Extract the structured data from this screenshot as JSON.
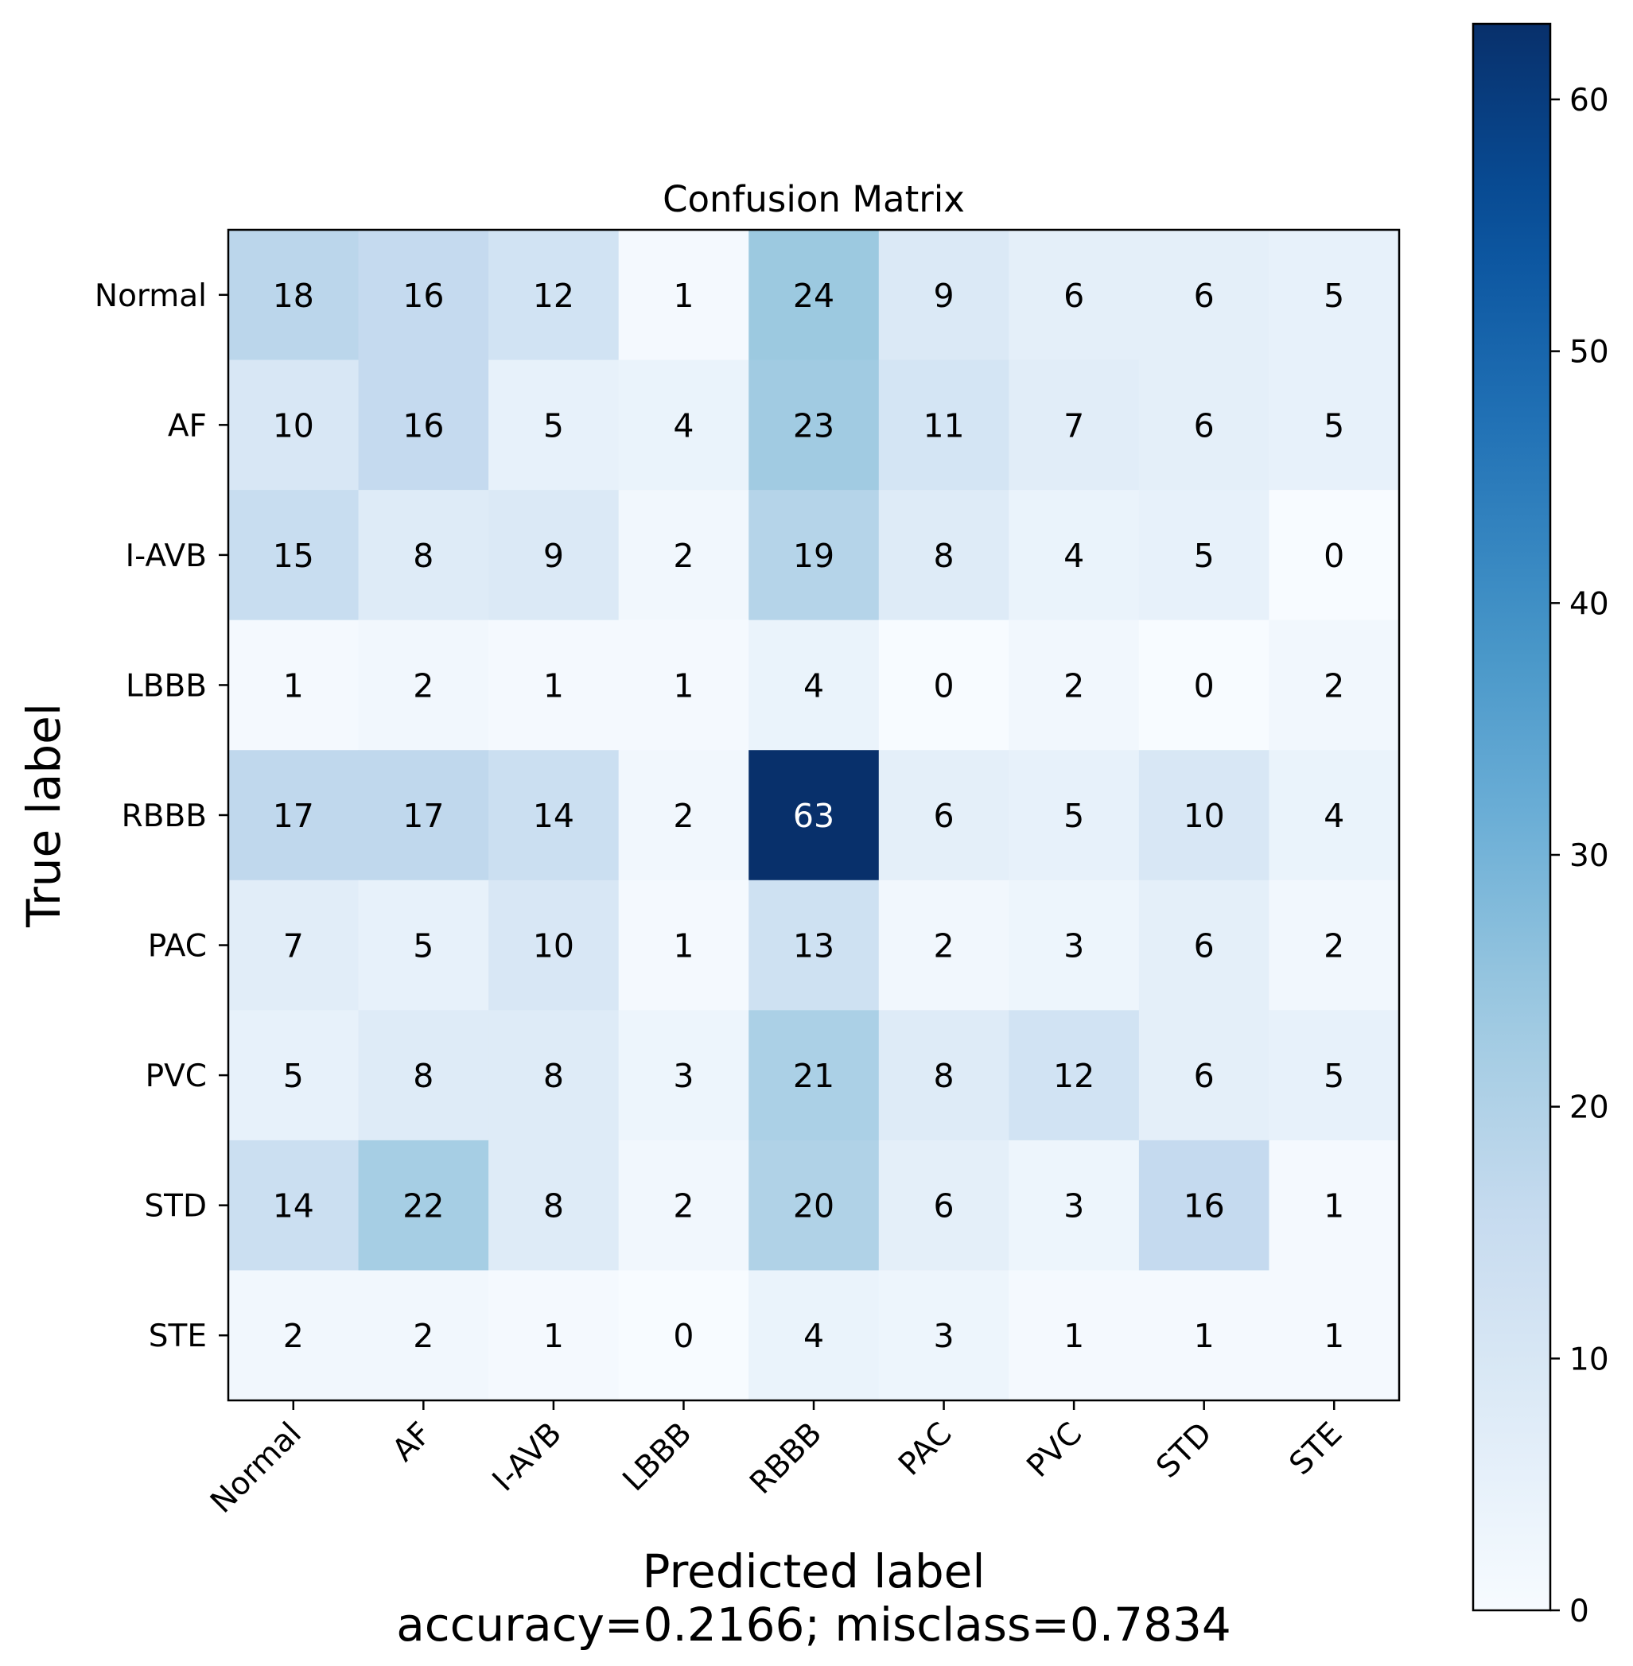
{
  "chart_data": {
    "type": "heatmap",
    "title": "Confusion Matrix",
    "xlabel": "Predicted label",
    "xlabel_sub": "accuracy=0.2166; misclass=0.7834",
    "ylabel": "True label",
    "colormap": "Blues",
    "vmin": 0,
    "vmax": 63,
    "colorbar_ticks": [
      0,
      10,
      20,
      30,
      40,
      50,
      60
    ],
    "x_categories": [
      "Normal",
      "AF",
      "I-AVB",
      "LBBB",
      "RBBB",
      "PAC",
      "PVC",
      "STD",
      "STE"
    ],
    "y_categories": [
      "Normal",
      "AF",
      "I-AVB",
      "LBBB",
      "RBBB",
      "PAC",
      "PVC",
      "STD",
      "STE"
    ],
    "values": [
      [
        18,
        16,
        12,
        1,
        24,
        9,
        6,
        6,
        5
      ],
      [
        10,
        16,
        5,
        4,
        23,
        11,
        7,
        6,
        5
      ],
      [
        15,
        8,
        9,
        2,
        19,
        8,
        4,
        5,
        0
      ],
      [
        1,
        2,
        1,
        1,
        4,
        0,
        2,
        0,
        2
      ],
      [
        17,
        17,
        14,
        2,
        63,
        6,
        5,
        10,
        4
      ],
      [
        7,
        5,
        10,
        1,
        13,
        2,
        3,
        6,
        2
      ],
      [
        5,
        8,
        8,
        3,
        21,
        8,
        12,
        6,
        5
      ],
      [
        14,
        22,
        8,
        2,
        20,
        6,
        3,
        16,
        1
      ],
      [
        2,
        2,
        1,
        0,
        4,
        3,
        1,
        1,
        1
      ]
    ]
  }
}
